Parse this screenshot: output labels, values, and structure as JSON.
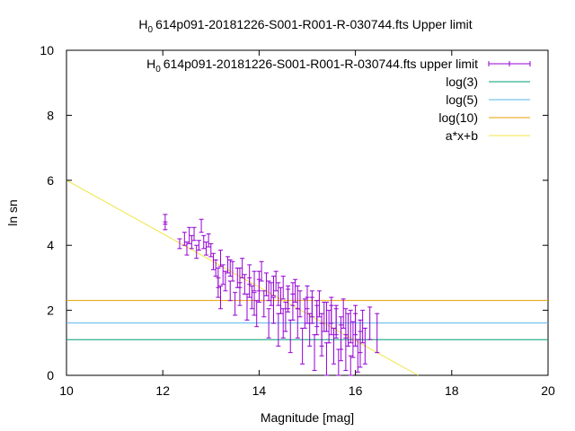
{
  "chart_data": {
    "type": "scatter",
    "title": "H 0 614p091-20181226-S001-R001-R-030744.fts Upper limit",
    "title_parts": {
      "pre": "H",
      "sub": "0",
      "post": "614p091-20181226-S001-R001-R-030744.fts Upper limit"
    },
    "xlabel": "Magnitude [mag]",
    "ylabel": "ln sn",
    "xlim": [
      10,
      20
    ],
    "ylim": [
      0,
      10
    ],
    "xticks": [
      "10",
      "12",
      "14",
      "16",
      "18",
      "20"
    ],
    "yticks": [
      "0",
      "2",
      "4",
      "6",
      "8",
      "10"
    ],
    "grid": false,
    "legend_position": "top-right",
    "series": [
      {
        "name": "H 0 614p091-20181226-S001-R001-R-030744.fts upper limit",
        "legend_parts": {
          "pre": "H",
          "sub": "0",
          "post": "614p091-20181226-S001-R001-R-030744.fts upper limit"
        },
        "kind": "errorbars",
        "color": "#9400d3",
        "points": [
          [
            12.05,
            4.8,
            0.15
          ],
          [
            12.05,
            4.6,
            0.12
          ],
          [
            12.35,
            4.05,
            0.15
          ],
          [
            12.45,
            4.2,
            0.2
          ],
          [
            12.5,
            3.9,
            0.2
          ],
          [
            12.55,
            4.3,
            0.25
          ],
          [
            12.6,
            4.1,
            0.2
          ],
          [
            12.65,
            4.35,
            0.2
          ],
          [
            12.7,
            3.8,
            0.2
          ],
          [
            12.75,
            4.0,
            0.15
          ],
          [
            12.8,
            4.6,
            0.2
          ],
          [
            12.85,
            4.1,
            0.2
          ],
          [
            12.9,
            3.9,
            0.2
          ],
          [
            12.95,
            4.15,
            0.2
          ],
          [
            13.0,
            3.85,
            0.2
          ],
          [
            13.05,
            3.5,
            0.25
          ],
          [
            13.1,
            3.3,
            0.25
          ],
          [
            13.15,
            3.0,
            0.3
          ],
          [
            13.15,
            2.7,
            0.3
          ],
          [
            13.2,
            3.6,
            0.25
          ],
          [
            13.2,
            2.4,
            0.35
          ],
          [
            13.25,
            3.1,
            0.3
          ],
          [
            13.3,
            2.9,
            0.3
          ],
          [
            13.35,
            3.4,
            0.25
          ],
          [
            13.4,
            2.6,
            0.3
          ],
          [
            13.45,
            3.2,
            0.3
          ],
          [
            13.5,
            2.2,
            0.35
          ],
          [
            13.55,
            3.0,
            0.3
          ],
          [
            13.6,
            2.5,
            0.35
          ],
          [
            13.65,
            3.3,
            0.3
          ],
          [
            13.7,
            2.8,
            0.3
          ],
          [
            13.75,
            2.1,
            0.4
          ],
          [
            13.8,
            3.1,
            0.3
          ],
          [
            13.85,
            2.4,
            0.35
          ],
          [
            13.9,
            2.9,
            0.3
          ],
          [
            13.95,
            1.9,
            0.4
          ],
          [
            14.0,
            2.6,
            0.35
          ],
          [
            14.05,
            3.2,
            0.3
          ],
          [
            14.1,
            2.2,
            0.4
          ],
          [
            14.15,
            2.8,
            0.35
          ],
          [
            14.2,
            1.6,
            0.45
          ],
          [
            14.25,
            2.5,
            0.35
          ],
          [
            14.3,
            2.0,
            0.4
          ],
          [
            14.35,
            2.9,
            0.3
          ],
          [
            14.4,
            1.4,
            0.5
          ],
          [
            14.45,
            2.3,
            0.4
          ],
          [
            14.5,
            2.7,
            0.35
          ],
          [
            14.55,
            1.8,
            0.45
          ],
          [
            14.6,
            2.4,
            0.35
          ],
          [
            14.65,
            1.2,
            0.5
          ],
          [
            14.7,
            2.1,
            0.4
          ],
          [
            14.75,
            2.6,
            0.35
          ],
          [
            14.8,
            1.6,
            0.45
          ],
          [
            14.85,
            2.2,
            0.4
          ],
          [
            14.9,
            0.9,
            0.55
          ],
          [
            14.95,
            1.9,
            0.45
          ],
          [
            15.0,
            2.4,
            0.35
          ],
          [
            15.05,
            1.4,
            0.5
          ],
          [
            15.1,
            2.0,
            0.4
          ],
          [
            15.15,
            0.7,
            0.55
          ],
          [
            15.2,
            1.7,
            0.45
          ],
          [
            15.25,
            2.2,
            0.4
          ],
          [
            15.3,
            1.1,
            0.5
          ],
          [
            15.35,
            1.8,
            0.45
          ],
          [
            15.4,
            0.5,
            0.5
          ],
          [
            15.45,
            1.5,
            0.5
          ],
          [
            15.5,
            2.0,
            0.4
          ],
          [
            15.55,
            0.9,
            0.55
          ],
          [
            15.6,
            1.6,
            0.45
          ],
          [
            15.65,
            0.4,
            0.4
          ],
          [
            15.7,
            1.3,
            0.5
          ],
          [
            15.75,
            1.9,
            0.45
          ],
          [
            15.8,
            0.7,
            0.55
          ],
          [
            15.85,
            1.4,
            0.5
          ],
          [
            15.9,
            0.3,
            0.3
          ],
          [
            15.95,
            1.1,
            0.55
          ],
          [
            16.0,
            1.7,
            0.45
          ],
          [
            16.05,
            0.6,
            0.5
          ],
          [
            16.1,
            1.2,
            0.5
          ],
          [
            16.15,
            1.5,
            0.5
          ],
          [
            16.2,
            0.9,
            0.55
          ],
          [
            16.3,
            1.6,
            0.5
          ],
          [
            16.45,
            1.3,
            0.6
          ],
          [
            13.4,
            3.3,
            0.25
          ],
          [
            13.6,
            3.0,
            0.3
          ],
          [
            13.8,
            2.7,
            0.3
          ],
          [
            14.0,
            2.9,
            0.3
          ],
          [
            14.2,
            2.6,
            0.3
          ],
          [
            14.4,
            2.5,
            0.35
          ],
          [
            14.6,
            2.3,
            0.35
          ],
          [
            14.8,
            2.4,
            0.35
          ],
          [
            15.0,
            2.0,
            0.4
          ],
          [
            15.2,
            1.9,
            0.4
          ],
          [
            15.4,
            1.8,
            0.45
          ],
          [
            15.6,
            1.7,
            0.45
          ],
          [
            15.8,
            1.6,
            0.45
          ],
          [
            16.0,
            1.4,
            0.5
          ],
          [
            14.3,
            2.75,
            0.3
          ],
          [
            14.7,
            2.5,
            0.35
          ],
          [
            15.1,
            2.2,
            0.4
          ],
          [
            15.5,
            1.7,
            0.45
          ],
          [
            15.9,
            1.5,
            0.5
          ],
          [
            13.9,
            2.2,
            0.35
          ],
          [
            14.5,
            1.6,
            0.45
          ],
          [
            15.3,
            1.4,
            0.5
          ],
          [
            15.7,
            1.0,
            0.55
          ],
          [
            16.1,
            0.8,
            0.55
          ]
        ]
      },
      {
        "name": "log(3)",
        "kind": "hline",
        "value": 1.0986,
        "color": "#009e73"
      },
      {
        "name": "log(5)",
        "kind": "hline",
        "value": 1.6094,
        "color": "#56b4e9"
      },
      {
        "name": "log(10)",
        "kind": "hline",
        "value": 2.3026,
        "color": "#e69f00"
      },
      {
        "name": "a*x+b",
        "kind": "line",
        "a": -0.8219,
        "b": 14.22,
        "color": "#f0e442"
      }
    ]
  }
}
